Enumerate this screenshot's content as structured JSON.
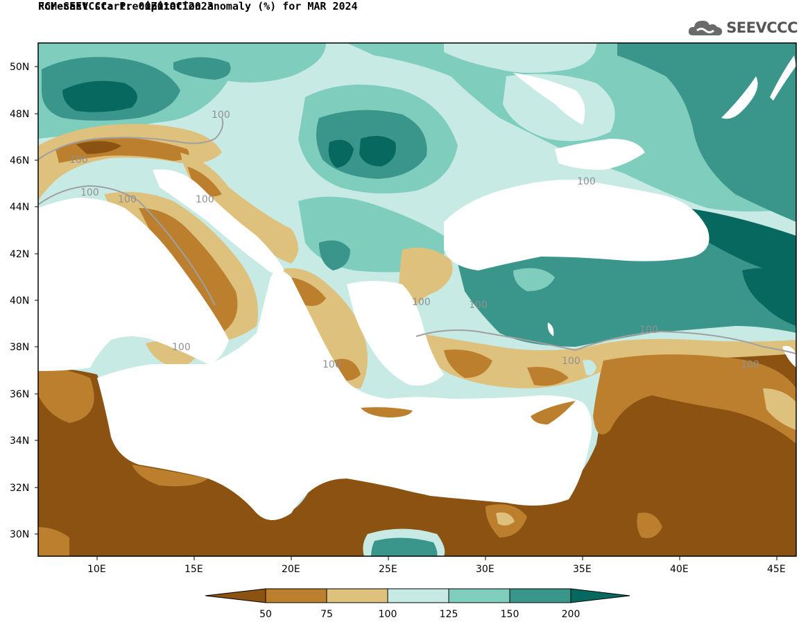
{
  "map": {
    "title_line_1": "RCM-SEEVCCC: Precipitation anomaly (%) for MAR 2024",
    "title_line_2": "Forecast start: 00Z01OCT2023",
    "brand": {
      "text": "SEEVCCC",
      "icon": "cloud-logo-icon"
    },
    "lat_labels": [
      "50N",
      "48N",
      "46N",
      "44N",
      "42N",
      "40N",
      "38N",
      "36N",
      "34N",
      "32N",
      "30N"
    ],
    "lon_labels": [
      "10E",
      "15E",
      "20E",
      "25E",
      "30E",
      "35E",
      "40E",
      "45E"
    ],
    "contour_labels": [
      "100",
      "100",
      "100",
      "100",
      "100",
      "100",
      "100",
      "100",
      "100",
      "100",
      "100",
      "100",
      "100"
    ],
    "colors": {
      "very_dry": "#8b5212",
      "dry": "#bb7f2e",
      "slightly_dry": "#dfc17e",
      "slightly_wet": "#c7eae4",
      "wet": "#7fcdbd",
      "very_wet": "#3a968b",
      "extreme_wet": "#06685f",
      "sea": "#ffffff"
    }
  },
  "legend": {
    "labels": [
      "50",
      "75",
      "100",
      "125",
      "150",
      "200"
    ]
  }
}
